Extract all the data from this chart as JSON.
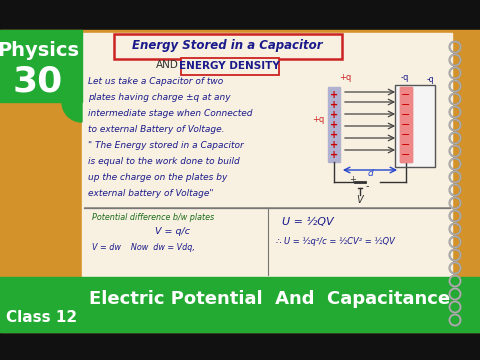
{
  "bg_color": "#111111",
  "notebook_color": "#d4922a",
  "notebook_paper_color": "#f8f0e0",
  "green_color": "#22aa33",
  "physics_text": "Physics",
  "number_text": "30",
  "class_text": "Class 12",
  "subject_text": "Electric Potential  And  Capacitance",
  "title_main": "Energy Stored in a Capacitor",
  "title_sub": "ENERGY DENSITY",
  "body_lines": [
    "Let us take a Capacitor of two",
    "plates having charge ±q at any",
    "intermediate stage when Connected",
    "to external Battery of Voltage.",
    "\" The Energy stored in a Capacitor",
    "is equal to the work done to build",
    "up the charge on the plates by",
    "external battery of Voltage\""
  ],
  "formula_left_1": "Potential difference b/w plates",
  "formula_left_2": "V = q/c",
  "formula_left_3": "V = dw    Now  dw = Vdq,",
  "formula_right_1": "U = ½QV",
  "formula_right_2": "∴ U = ½q²/c = ½CV² = ½QV",
  "text_blue": "#0000cc",
  "text_dark_blue": "#1a1a8c",
  "text_green": "#1a6b1a",
  "text_red": "#cc2222",
  "spiral_color": "#888888",
  "separator_color": "#777777"
}
